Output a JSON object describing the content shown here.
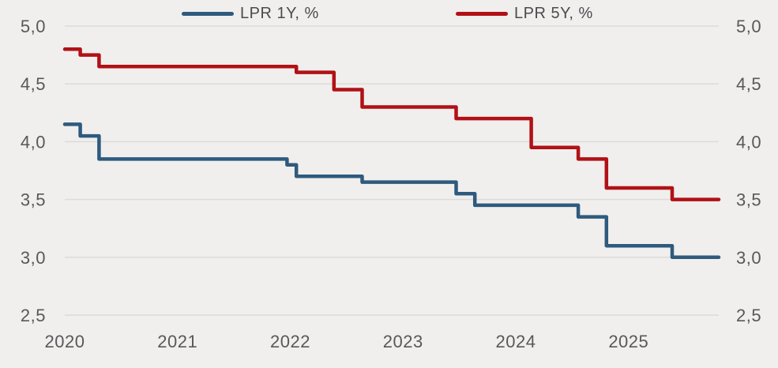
{
  "colors": {
    "background": "#f0efed",
    "gridline": "#dcdbd8",
    "tick_text": "#58585b",
    "legend_text": "#4b4b4f"
  },
  "chart_data": {
    "type": "line",
    "step": true,
    "title": "",
    "xlabel": "",
    "ylabel": "",
    "grid": true,
    "legend_position": "top",
    "x_domain": [
      2020.0,
      2025.8
    ],
    "y_domain": [
      2.5,
      5.0
    ],
    "y_ticks": [
      5.0,
      4.5,
      4.0,
      3.5,
      3.0,
      2.5
    ],
    "y_tick_labels": [
      "5,0",
      "4,5",
      "4,0",
      "3,5",
      "3,0",
      "2,5"
    ],
    "y_axis_sides": "both",
    "x_ticks": [
      2020,
      2021,
      2022,
      2023,
      2024,
      2025
    ],
    "x_tick_labels": [
      "2020",
      "2021",
      "2022",
      "2023",
      "2024",
      "2025"
    ],
    "series": [
      {
        "name": "LPR 1Y, %",
        "color": "#2E5A7D",
        "points": [
          [
            2020.0,
            4.15
          ],
          [
            2020.137,
            4.05
          ],
          [
            2020.304,
            3.85
          ],
          [
            2021.971,
            3.8
          ],
          [
            2022.054,
            3.7
          ],
          [
            2022.637,
            3.65
          ],
          [
            2023.471,
            3.55
          ],
          [
            2023.637,
            3.45
          ],
          [
            2024.554,
            3.35
          ],
          [
            2024.804,
            3.1
          ],
          [
            2025.387,
            3.0
          ],
          [
            2025.8,
            3.0
          ]
        ]
      },
      {
        "name": "LPR 5Y, %",
        "color": "#B11116",
        "points": [
          [
            2020.0,
            4.8
          ],
          [
            2020.137,
            4.75
          ],
          [
            2020.304,
            4.65
          ],
          [
            2022.054,
            4.6
          ],
          [
            2022.387,
            4.45
          ],
          [
            2022.637,
            4.3
          ],
          [
            2023.471,
            4.2
          ],
          [
            2024.137,
            3.95
          ],
          [
            2024.554,
            3.85
          ],
          [
            2024.804,
            3.6
          ],
          [
            2025.387,
            3.5
          ],
          [
            2025.8,
            3.5
          ]
        ]
      }
    ]
  }
}
